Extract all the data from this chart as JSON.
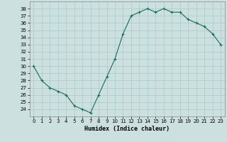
{
  "x": [
    0,
    1,
    2,
    3,
    4,
    5,
    6,
    7,
    8,
    9,
    10,
    11,
    12,
    13,
    14,
    15,
    16,
    17,
    18,
    19,
    20,
    21,
    22,
    23
  ],
  "y": [
    30,
    28,
    27,
    26.5,
    26,
    24.5,
    24,
    23.5,
    26,
    28.5,
    31,
    34.5,
    37,
    37.5,
    38,
    37.5,
    38,
    37.5,
    37.5,
    36.5,
    36,
    35.5,
    34.5,
    33
  ],
  "line_color": "#1a6b5a",
  "marker": "+",
  "bg_color": "#cce0e0",
  "grid_color": "#aac8c8",
  "xlabel": "Humidex (Indice chaleur)",
  "xlim": [
    -0.5,
    23.5
  ],
  "ylim": [
    23,
    39
  ],
  "yticks": [
    24,
    25,
    26,
    27,
    28,
    29,
    30,
    31,
    32,
    33,
    34,
    35,
    36,
    37,
    38
  ],
  "xticks": [
    0,
    1,
    2,
    3,
    4,
    5,
    6,
    7,
    8,
    9,
    10,
    11,
    12,
    13,
    14,
    15,
    16,
    17,
    18,
    19,
    20,
    21,
    22,
    23
  ],
  "tick_fontsize": 5,
  "label_fontsize": 6
}
